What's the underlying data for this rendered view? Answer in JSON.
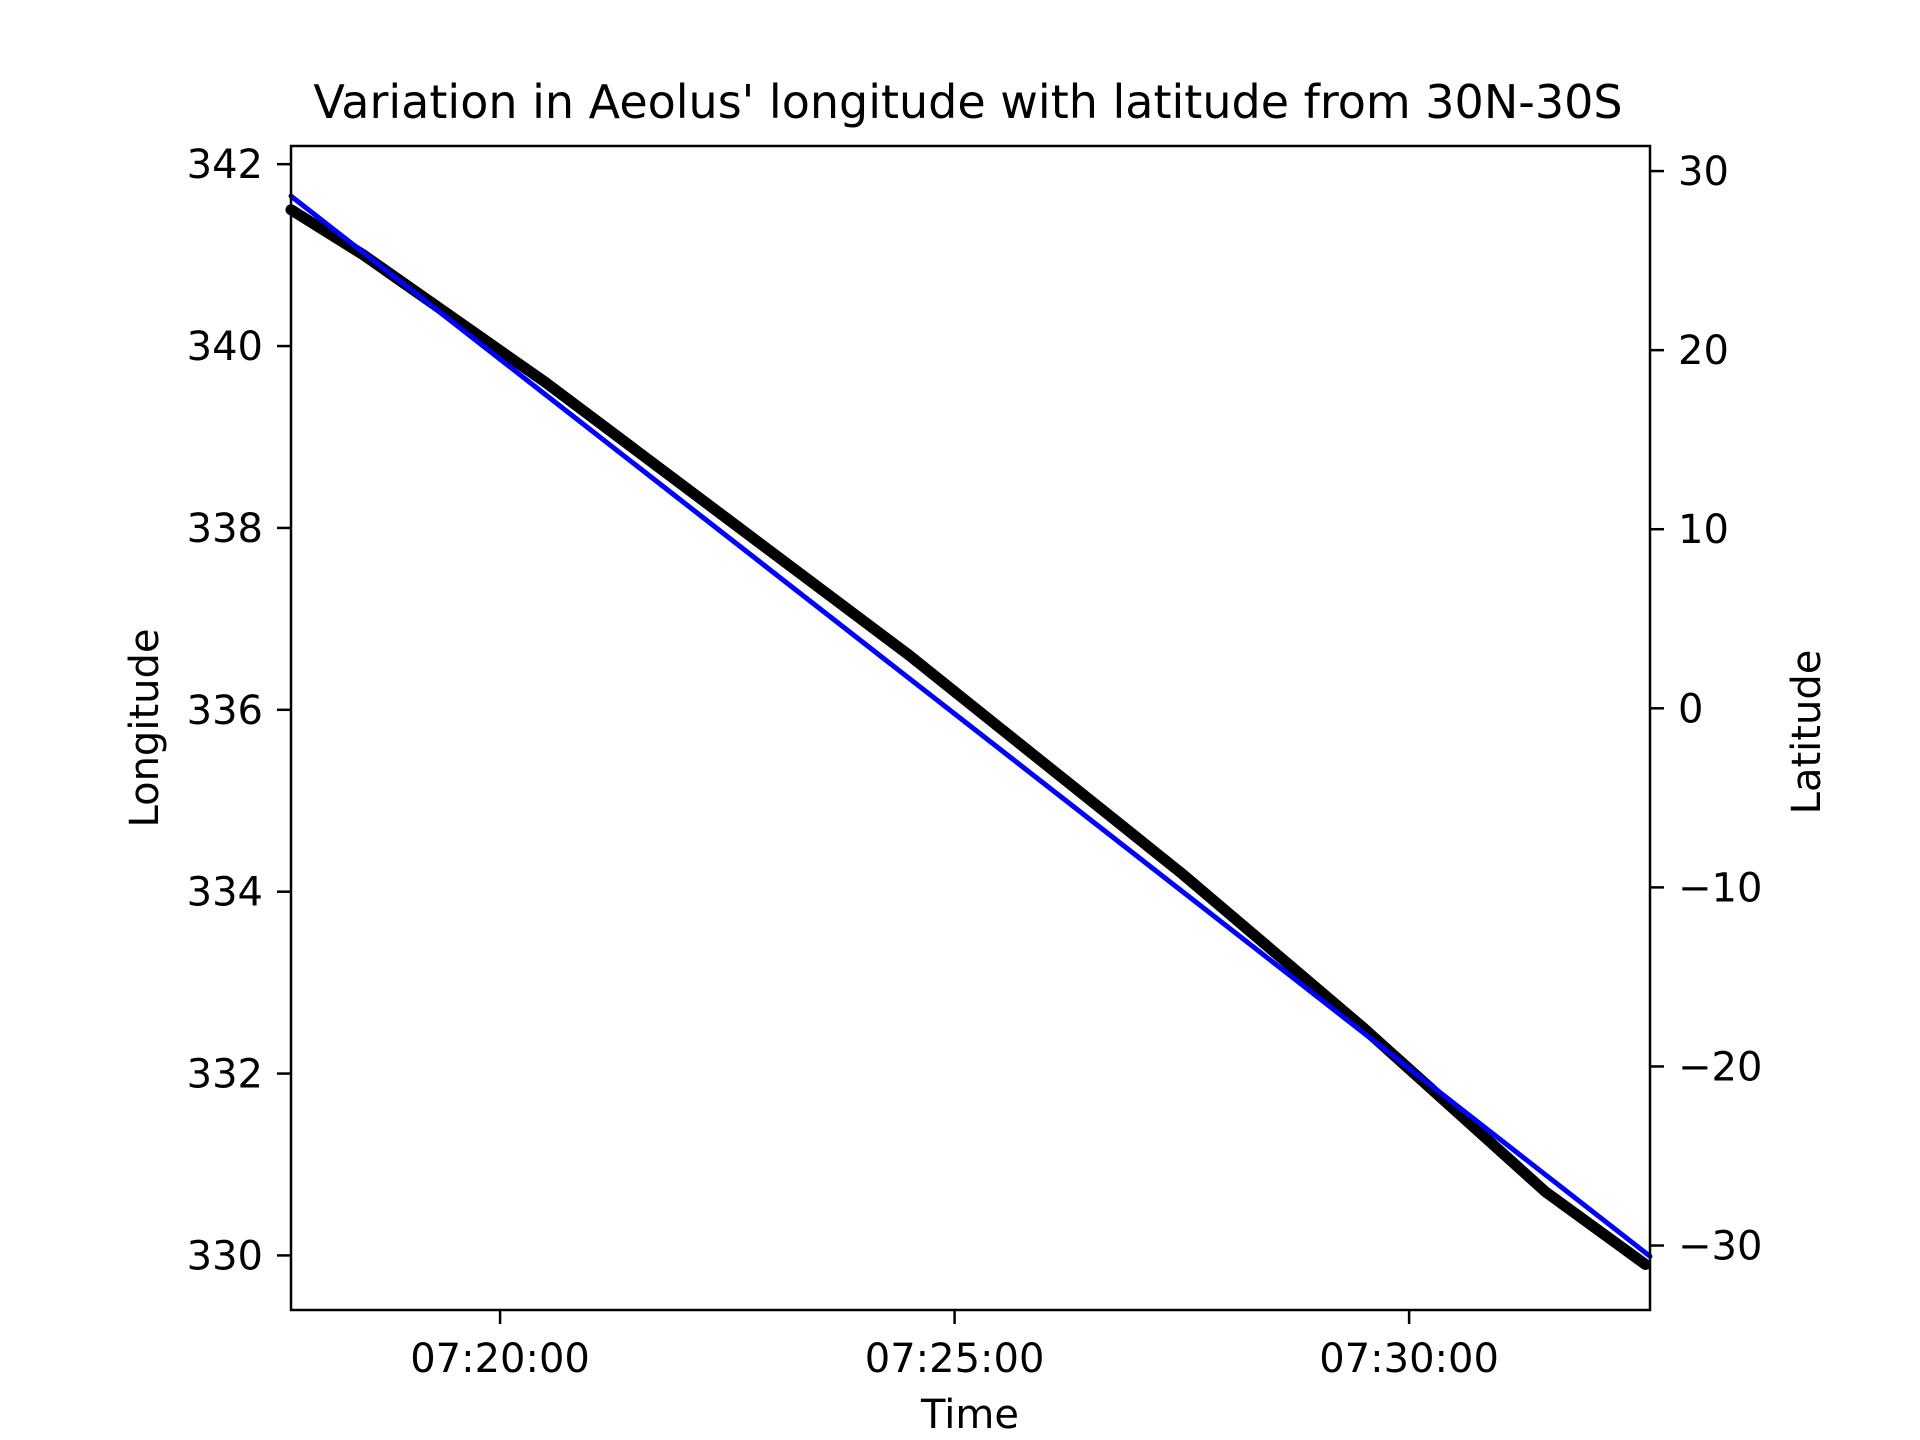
{
  "chart_data": {
    "type": "line",
    "title": "Variation in Aeolus' longitude with latitude from 30N-30S",
    "xlabel": "Time",
    "ylabel": "Longitude",
    "y2label": "Latitude",
    "x_ticks": [
      "07:20:00",
      "07:25:00",
      "07:30:00"
    ],
    "x_tick_values": [
      20.0,
      25.0,
      30.0
    ],
    "xlim": [
      17.7,
      32.65
    ],
    "x_unit": "minutes after 07:00:00",
    "y_ticks": [
      342,
      340,
      338,
      336,
      334,
      332,
      330
    ],
    "ylim": [
      329.4,
      342.2
    ],
    "y2_ticks": [
      30,
      20,
      10,
      0,
      -10,
      -20,
      -30
    ],
    "y2_tick_labels": [
      "30",
      "20",
      "10",
      "0",
      "−10",
      "−20",
      "−30"
    ],
    "y2lim": [
      -33.6,
      31.4
    ],
    "grid": false,
    "series": [
      {
        "axis": "left",
        "color": "#000000",
        "x": [
          17.7,
          18.5,
          19.5,
          20.5,
          21.5,
          22.5,
          23.5,
          24.5,
          25.5,
          26.5,
          27.5,
          28.5,
          29.5,
          30.5,
          31.5,
          32.6
        ],
        "values": [
          341.5,
          341.0,
          340.3,
          339.6,
          338.85,
          338.1,
          337.35,
          336.6,
          335.8,
          335.0,
          334.2,
          333.35,
          332.5,
          331.6,
          330.7,
          329.9
        ]
      },
      {
        "axis": "right",
        "color": "#0000ff",
        "x": [
          17.7,
          32.65
        ],
        "values": [
          28.6,
          -30.6
        ]
      }
    ]
  }
}
